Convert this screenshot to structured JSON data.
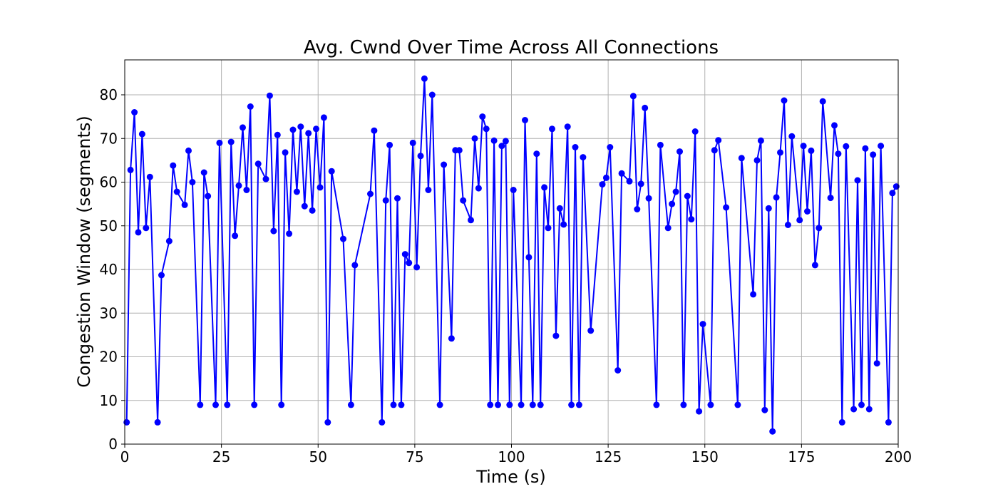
{
  "chart_data": {
    "type": "line",
    "title": "Avg. Cwnd Over Time Across All Connections",
    "xlabel": "Time (s)",
    "ylabel": "Congestion Window (segments)",
    "xlim": [
      0,
      200
    ],
    "ylim": [
      0,
      88
    ],
    "xticks": [
      0,
      25,
      50,
      75,
      100,
      125,
      150,
      175,
      200
    ],
    "yticks": [
      0,
      10,
      20,
      30,
      40,
      50,
      60,
      70,
      80
    ],
    "grid": true,
    "series": [
      {
        "name": "Avg. Cwnd",
        "color": "#0000ff",
        "marker": "circle",
        "points": [
          [
            0.5,
            5
          ],
          [
            1.5,
            62.8
          ],
          [
            2.5,
            76
          ],
          [
            3.5,
            48.5
          ],
          [
            4.5,
            71
          ],
          [
            5.5,
            49.5
          ],
          [
            6.5,
            61.2
          ],
          [
            8.5,
            5
          ],
          [
            9.5,
            38.7
          ],
          [
            11.5,
            46.5
          ],
          [
            12.5,
            63.8
          ],
          [
            13.5,
            57.8
          ],
          [
            15.5,
            54.8
          ],
          [
            16.5,
            67.2
          ],
          [
            17.5,
            60
          ],
          [
            19.5,
            9
          ],
          [
            20.5,
            62.2
          ],
          [
            21.5,
            56.8
          ],
          [
            23.5,
            9
          ],
          [
            24.5,
            69
          ],
          [
            26.5,
            9
          ],
          [
            27.5,
            69.2
          ],
          [
            28.5,
            47.7
          ],
          [
            29.5,
            59.2
          ],
          [
            30.5,
            72.5
          ],
          [
            31.5,
            58.2
          ],
          [
            32.5,
            77.3
          ],
          [
            33.5,
            9
          ],
          [
            34.5,
            64.2
          ],
          [
            36.5,
            60.7
          ],
          [
            37.5,
            79.8
          ],
          [
            38.5,
            48.8
          ],
          [
            39.5,
            70.8
          ],
          [
            40.5,
            9
          ],
          [
            41.5,
            66.8
          ],
          [
            42.5,
            48.2
          ],
          [
            43.5,
            72
          ],
          [
            44.5,
            57.8
          ],
          [
            45.5,
            72.7
          ],
          [
            46.5,
            54.5
          ],
          [
            47.5,
            71.2
          ],
          [
            48.5,
            53.5
          ],
          [
            49.5,
            72.2
          ],
          [
            50.5,
            58.8
          ],
          [
            51.5,
            74.8
          ],
          [
            52.5,
            5
          ],
          [
            53.5,
            62.5
          ],
          [
            56.5,
            47
          ],
          [
            58.5,
            9
          ],
          [
            59.5,
            41
          ],
          [
            63.5,
            57.3
          ],
          [
            64.5,
            71.8
          ],
          [
            66.5,
            5
          ],
          [
            67.5,
            55.8
          ],
          [
            68.5,
            68.5
          ],
          [
            69.5,
            9
          ],
          [
            70.5,
            56.3
          ],
          [
            71.5,
            9
          ],
          [
            72.5,
            43.5
          ],
          [
            73.5,
            41.5
          ],
          [
            74.5,
            69
          ],
          [
            75.5,
            40.5
          ],
          [
            76.5,
            66
          ],
          [
            77.5,
            83.7
          ],
          [
            78.5,
            58.2
          ],
          [
            79.5,
            80
          ],
          [
            81.5,
            9
          ],
          [
            82.5,
            64
          ],
          [
            84.5,
            24.2
          ],
          [
            85.5,
            67.3
          ],
          [
            86.5,
            67.3
          ],
          [
            87.5,
            55.8
          ],
          [
            89.5,
            51.3
          ],
          [
            90.5,
            70
          ],
          [
            91.5,
            58.6
          ],
          [
            92.5,
            75
          ],
          [
            93.5,
            72.2
          ],
          [
            94.5,
            9
          ],
          [
            95.5,
            69.5
          ],
          [
            96.5,
            9
          ],
          [
            97.5,
            68.3
          ],
          [
            98.5,
            69.4
          ],
          [
            99.5,
            9
          ],
          [
            100.5,
            58.2
          ],
          [
            102.5,
            9
          ],
          [
            103.5,
            74.2
          ],
          [
            104.5,
            42.8
          ],
          [
            105.5,
            9
          ],
          [
            106.5,
            66.5
          ],
          [
            107.5,
            9
          ],
          [
            108.5,
            58.8
          ],
          [
            109.5,
            49.5
          ],
          [
            110.5,
            72.2
          ],
          [
            111.5,
            24.8
          ],
          [
            112.5,
            54
          ],
          [
            113.5,
            50.3
          ],
          [
            114.5,
            72.7
          ],
          [
            115.5,
            9
          ],
          [
            116.5,
            68
          ],
          [
            117.5,
            9
          ],
          [
            118.5,
            65.7
          ],
          [
            120.5,
            26
          ],
          [
            123.5,
            59.5
          ],
          [
            124.5,
            61
          ],
          [
            125.5,
            68
          ],
          [
            127.5,
            16.9
          ],
          [
            128.5,
            62
          ],
          [
            130.5,
            60.2
          ],
          [
            131.5,
            79.7
          ],
          [
            132.5,
            53.8
          ],
          [
            133.5,
            59.6
          ],
          [
            134.5,
            77
          ],
          [
            135.5,
            56.3
          ],
          [
            137.5,
            9
          ],
          [
            138.5,
            68.5
          ],
          [
            140.5,
            49.5
          ],
          [
            141.5,
            55
          ],
          [
            142.5,
            57.8
          ],
          [
            143.5,
            67
          ],
          [
            144.5,
            9
          ],
          [
            145.5,
            56.8
          ],
          [
            146.5,
            51.5
          ],
          [
            147.5,
            71.6
          ],
          [
            148.5,
            7.5
          ],
          [
            149.5,
            27.5
          ],
          [
            151.5,
            9
          ],
          [
            152.5,
            67.3
          ],
          [
            153.5,
            69.6
          ],
          [
            155.5,
            54.2
          ],
          [
            158.5,
            9
          ],
          [
            159.5,
            65.5
          ],
          [
            162.5,
            34.3
          ],
          [
            163.5,
            65
          ],
          [
            164.5,
            69.5
          ],
          [
            165.5,
            7.8
          ],
          [
            166.5,
            54
          ],
          [
            167.5,
            2.9
          ],
          [
            168.5,
            56.5
          ],
          [
            169.5,
            66.8
          ],
          [
            170.5,
            78.7
          ],
          [
            171.5,
            50.2
          ],
          [
            172.5,
            70.5
          ],
          [
            174.5,
            51.3
          ],
          [
            175.5,
            68.3
          ],
          [
            176.5,
            53.3
          ],
          [
            177.5,
            67.2
          ],
          [
            178.5,
            41
          ],
          [
            179.5,
            49.5
          ],
          [
            180.5,
            78.5
          ],
          [
            182.5,
            56.4
          ],
          [
            183.5,
            73
          ],
          [
            184.5,
            66.5
          ],
          [
            185.5,
            5
          ],
          [
            186.5,
            68.2
          ],
          [
            188.5,
            8
          ],
          [
            189.5,
            60.4
          ],
          [
            190.5,
            9
          ],
          [
            191.5,
            67.7
          ],
          [
            192.5,
            8
          ],
          [
            193.5,
            66.3
          ],
          [
            194.5,
            18.5
          ],
          [
            195.5,
            68.3
          ],
          [
            197.5,
            5
          ],
          [
            198.5,
            57.5
          ],
          [
            199.5,
            59
          ]
        ]
      }
    ]
  }
}
